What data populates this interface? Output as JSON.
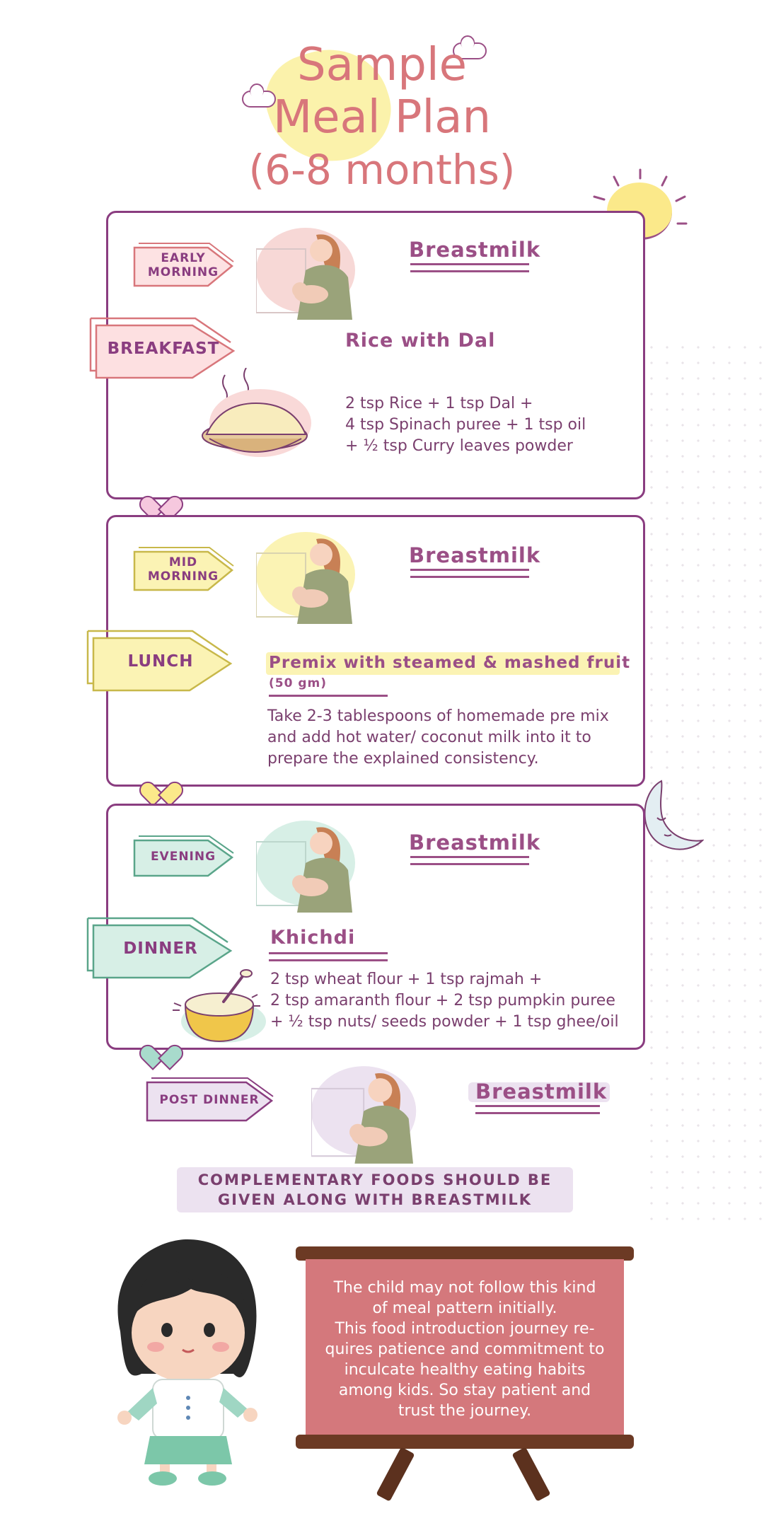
{
  "title": {
    "line1": "Sample",
    "line2": "Meal Plan",
    "line3": "(6-8 months)"
  },
  "colors": {
    "accent_purple": "#8a3d80",
    "title_pink": "#d8767b",
    "board_pink": "#d4787c",
    "highlight_yellow": "#fbf1a6",
    "pink_tag": "#f3c4c6",
    "yellow_tag": "#fbf3b4",
    "mint_tag": "#d7efe6",
    "lavender_tag": "#ece2f0"
  },
  "card1": {
    "slot_label_line1": "EARLY",
    "slot_label_line2": "MORNING",
    "slot_drink": "Breastmilk",
    "meal_label": "BREAKFAST",
    "meal_name": "Rice with Dal",
    "recipe": [
      "2 tsp Rice + 1 tsp Dal +",
      "4 tsp Spinach puree + 1 tsp oil",
      "+ ½ tsp Curry leaves powder"
    ]
  },
  "card2": {
    "slot_label_line1": "MID",
    "slot_label_line2": "MORNING",
    "slot_drink": "Breastmilk",
    "meal_label": "LUNCH",
    "meal_name": "Premix with steamed & mashed fruit",
    "meal_qty": "(50 gm)",
    "recipe": [
      "Take 2-3 tablespoons of homemade pre mix",
      "and add hot water/ coconut milk into it to",
      "prepare the explained consistency."
    ]
  },
  "card3": {
    "slot_label": "EVENING",
    "slot_drink": "Breastmilk",
    "meal_label": "DINNER",
    "meal_name": "Khichdi",
    "recipe": [
      "2 tsp wheat flour + 1 tsp rajmah +",
      "2 tsp amaranth flour + 2 tsp pumpkin puree",
      "+ ½ tsp nuts/ seeds powder + 1 tsp ghee/oil"
    ]
  },
  "post_dinner": {
    "label": "POST DINNER",
    "drink": "Breastmilk"
  },
  "banner": {
    "line1": "COMPLEMENTARY FOODS SHOULD BE",
    "line2": "GIVEN ALONG WITH BREASTMILK"
  },
  "board": {
    "lines": [
      "The child may not follow this kind",
      "of meal pattern initially.",
      "This food introduction journey re-",
      "quires patience and commitment to",
      "inculcate healthy eating habits",
      "among kids. So stay patient and",
      "trust the journey."
    ]
  },
  "icons": {
    "nursing_mother": "nursing-mother-illustration",
    "rice_plate": "rice-plate-illustration",
    "khichdi_bowl": "khichdi-bowl-illustration",
    "girl": "girl-character-illustration",
    "sun": "sun-icon",
    "moon": "crescent-moon-icon",
    "cloud": "cloud-icon",
    "heart": "heart-icon"
  }
}
